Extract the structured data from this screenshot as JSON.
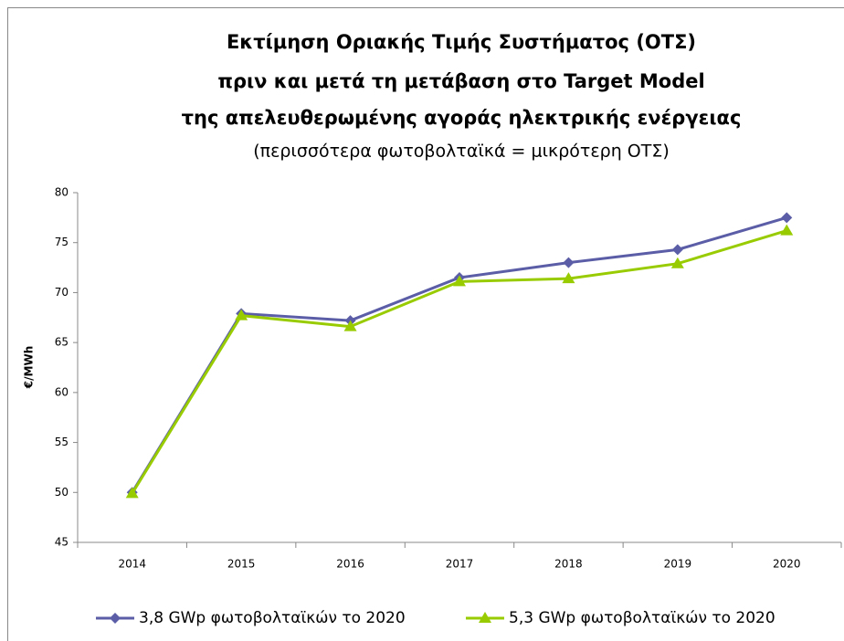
{
  "chart_data": {
    "type": "line",
    "title": [
      "Εκτίμηση Οριακής Τιμής Συστήματος (ΟΤΣ)",
      "πριν και μετά τη μετάβαση στο Target Model",
      "της απελευθερωμένης αγοράς ηλεκτρικής ενέργειας"
    ],
    "subtitle": "(περισσότερα φωτοβολταϊκά = μικρότερη ΟΤΣ)",
    "y_label": "€/MWh",
    "categories": [
      "2014",
      "2015",
      "2016",
      "2017",
      "2018",
      "2019",
      "2020"
    ],
    "series": [
      {
        "name": "3,8 GWp φωτοβολταϊκών το 2020",
        "color": "#5b5ea6",
        "marker": "diamond",
        "values": [
          50.0,
          67.9,
          67.2,
          71.5,
          73.0,
          74.3,
          77.5
        ]
      },
      {
        "name": "5,3 GWp φωτοβολταϊκών το 2020",
        "color": "#99cc00",
        "marker": "triangle",
        "values": [
          49.9,
          67.7,
          66.6,
          71.1,
          71.4,
          72.9,
          76.2
        ]
      }
    ],
    "ylim": [
      45,
      80
    ],
    "yticks": [
      45,
      50,
      55,
      60,
      65,
      70,
      75,
      80
    ],
    "grid": false,
    "legend": "bottom"
  }
}
